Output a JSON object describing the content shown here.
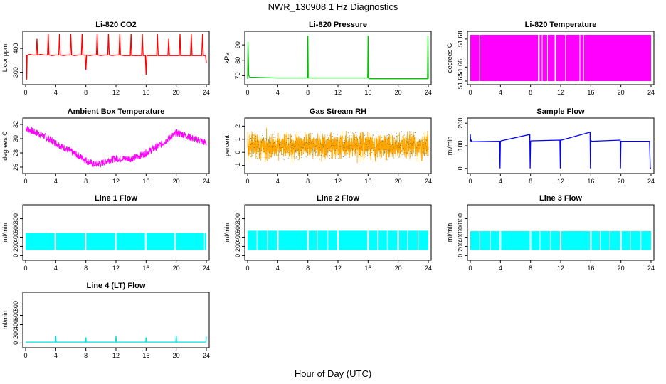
{
  "page": {
    "title": "NWR_130908  1 Hz Diagnostics",
    "xlabel": "Hour of Day (UTC)"
  },
  "chart_data": [
    {
      "type": "line",
      "title": "Li-820 CO2",
      "ylabel": "Licor ppm",
      "color": "#ff0000",
      "xlim": [
        0,
        24
      ],
      "x_ticks": [
        0,
        4,
        8,
        12,
        16,
        20,
        24
      ],
      "ylim": [
        260,
        460
      ],
      "y_ticks": [
        300,
        400
      ],
      "series": [
        {
          "x": [
            0,
            0.1,
            0.15,
            0.2,
            0.5,
            1.0,
            1.4,
            1.5,
            1.6,
            2.0,
            2.5,
            2.9,
            3.0,
            3.1,
            3.5,
            4.0,
            4.4,
            4.5,
            4.6,
            5.0,
            5.5,
            5.9,
            6.0,
            6.1,
            6.5,
            7.0,
            7.4,
            7.5,
            7.6,
            7.9,
            8.0,
            8.1,
            8.5,
            9.0,
            9.4,
            9.5,
            9.6,
            10.0,
            10.5,
            10.9,
            11.0,
            11.1,
            11.5,
            12.0,
            12.4,
            12.5,
            12.6,
            13.0,
            13.5,
            13.9,
            14.0,
            14.1,
            14.5,
            15.0,
            15.4,
            15.5,
            15.6,
            15.9,
            16.0,
            16.1,
            16.5,
            17.0,
            17.4,
            17.5,
            17.6,
            18.0,
            18.5,
            18.9,
            19.0,
            19.1,
            19.5,
            20.0,
            20.4,
            20.5,
            20.6,
            21.0,
            21.5,
            21.9,
            22.0,
            22.1,
            22.5,
            23.0,
            23.4,
            23.5,
            23.6,
            23.9,
            24.0
          ],
          "y": [
            370,
            370,
            270,
            370,
            375,
            372,
            372,
            440,
            372,
            375,
            372,
            372,
            460,
            372,
            370,
            372,
            372,
            460,
            372,
            370,
            372,
            372,
            460,
            372,
            370,
            372,
            372,
            460,
            372,
            372,
            310,
            372,
            370,
            372,
            372,
            460,
            372,
            370,
            372,
            372,
            460,
            372,
            370,
            372,
            372,
            460,
            372,
            370,
            370,
            370,
            460,
            370,
            370,
            370,
            370,
            460,
            370,
            370,
            290,
            370,
            370,
            370,
            370,
            460,
            370,
            370,
            370,
            370,
            440,
            370,
            370,
            370,
            370,
            460,
            370,
            370,
            370,
            370,
            460,
            370,
            370,
            370,
            370,
            460,
            370,
            370,
            340
          ]
        }
      ]
    },
    {
      "type": "line",
      "title": "Li-820 Pressure",
      "ylabel": "kPa",
      "color": "#00c000",
      "xlim": [
        0,
        24
      ],
      "x_ticks": [
        0,
        4,
        8,
        12,
        16,
        20,
        24
      ],
      "ylim": [
        66,
        97
      ],
      "y_ticks": [
        70,
        80,
        90
      ],
      "series": [
        {
          "x": [
            0,
            0.05,
            0.1,
            0.15,
            0.3,
            4.0,
            7.95,
            8.0,
            8.05,
            8.2,
            12.0,
            15.95,
            16.0,
            16.05,
            16.2,
            20.0,
            23.9,
            23.95,
            24.0
          ],
          "y": [
            68,
            92,
            80,
            70,
            69,
            68.5,
            68.5,
            96,
            68.5,
            68.5,
            68.5,
            68.5,
            96,
            68.5,
            68,
            68,
            68,
            96,
            68
          ]
        }
      ]
    },
    {
      "type": "area",
      "title": "Li-820 Temperature",
      "ylabel": "degrees C",
      "color": "#ff00ff",
      "xlim": [
        0,
        24
      ],
      "x_ticks": [
        0,
        4,
        8,
        12,
        16,
        20,
        24
      ],
      "ylim": [
        51.6495,
        51.6835
      ],
      "y_ticks": [
        51.65,
        51.66,
        51.68
      ],
      "y_tick_labels": [
        "51.65",
        "51.66",
        "51.68"
      ],
      "band_low": 51.65,
      "band_high": 51.683,
      "gaps": [
        [
          1.2,
          1.3
        ],
        [
          9.0,
          9.2
        ],
        [
          9.5,
          9.6
        ],
        [
          10.2,
          10.3
        ],
        [
          11.2,
          11.4
        ],
        [
          12.6,
          12.7
        ],
        [
          14.5,
          14.6
        ],
        [
          15.0,
          15.1
        ]
      ]
    },
    {
      "type": "line",
      "title": "Ambient Box Temperature",
      "ylabel": "degrees C",
      "color": "#ff00ff",
      "xlim": [
        0,
        24
      ],
      "x_ticks": [
        0,
        4,
        8,
        12,
        16,
        20,
        24
      ],
      "ylim": [
        25.5,
        32.5
      ],
      "y_ticks": [
        26,
        28,
        30,
        32
      ],
      "series": [
        {
          "x": [
            0,
            1,
            2,
            3,
            4,
            5,
            6,
            7,
            8,
            9,
            10,
            11,
            12,
            13,
            14,
            15,
            16,
            17,
            18,
            19,
            20,
            21,
            22,
            23,
            24
          ],
          "y": [
            31.5,
            31.0,
            30.6,
            30.0,
            29.4,
            28.8,
            28.2,
            27.6,
            27.0,
            26.4,
            26.5,
            27.0,
            27.2,
            27.2,
            27.2,
            27.5,
            28.0,
            28.6,
            29.2,
            30.0,
            30.8,
            30.6,
            30.1,
            29.8,
            29.4
          ]
        }
      ],
      "noise": 0.5
    },
    {
      "type": "scatter",
      "title": "Gas Stream RH",
      "ylabel": "percent",
      "color": "#ffa500",
      "point_color": "#806000",
      "xlim": [
        0,
        24
      ],
      "x_ticks": [
        0,
        4,
        8,
        12,
        16,
        20,
        24
      ],
      "ylim": [
        -1.4,
        2.4
      ],
      "y_ticks": [
        -1,
        0,
        1,
        2
      ],
      "center": 0.5,
      "spread": 0.9
    },
    {
      "type": "line",
      "title": "Sample Flow",
      "ylabel": "ml/min",
      "color": "#0000ff",
      "xlim": [
        0,
        24
      ],
      "x_ticks": [
        0,
        4,
        8,
        12,
        16,
        20,
        24
      ],
      "ylim": [
        -10,
        210
      ],
      "y_ticks": [
        0,
        100,
        200
      ],
      "series": [
        {
          "x": [
            0,
            0.05,
            0.1,
            0.2,
            3.9,
            3.95,
            4.0,
            4.1,
            7.9,
            7.95,
            8.0,
            8.1,
            11.9,
            11.95,
            12.0,
            12.1,
            15.9,
            15.95,
            16.0,
            16.1,
            19.9,
            19.95,
            20.0,
            20.1,
            23.8,
            23.9,
            24.0
          ],
          "y": [
            150,
            120,
            125,
            118,
            120,
            0,
            120,
            122,
            150,
            0,
            120,
            122,
            125,
            0,
            125,
            125,
            160,
            0,
            125,
            120,
            125,
            0,
            120,
            120,
            120,
            0,
            0
          ]
        }
      ]
    },
    {
      "type": "area",
      "title": "Line 1 Flow",
      "ylabel": "ml/min",
      "color": "#00ffff",
      "xlim": [
        0,
        24
      ],
      "x_ticks": [
        0,
        4,
        8,
        12,
        16,
        20,
        24
      ],
      "ylim": [
        -40,
        1040
      ],
      "y_ticks": [
        0,
        200,
        400,
        600,
        800
      ],
      "band_low": 120,
      "band_high": 490,
      "gaps": [
        [
          3.85,
          4.05
        ],
        [
          7.85,
          8.05
        ],
        [
          11.85,
          12.05
        ],
        [
          15.85,
          16.05
        ],
        [
          19.75,
          19.95
        ],
        [
          23.7,
          23.8
        ]
      ]
    },
    {
      "type": "area",
      "title": "Line 2 Flow",
      "ylabel": "ml/min",
      "color": "#00ffff",
      "xlim": [
        0,
        24
      ],
      "x_ticks": [
        0,
        4,
        8,
        12,
        16,
        20,
        24
      ],
      "ylim": [
        -40,
        1040
      ],
      "y_ticks": [
        0,
        200,
        400,
        600,
        800
      ],
      "band_low": 120,
      "band_high": 540,
      "gaps": [
        [
          1.2,
          1.3
        ],
        [
          2.6,
          2.7
        ],
        [
          3.9,
          4.1
        ],
        [
          7.9,
          8.1
        ],
        [
          9.2,
          9.3
        ],
        [
          10.6,
          10.7
        ],
        [
          11.9,
          12.1
        ],
        [
          15.9,
          16.1
        ],
        [
          17.2,
          17.3
        ],
        [
          18.5,
          18.6
        ],
        [
          19.9,
          20.1
        ],
        [
          21.2,
          21.3
        ],
        [
          22.6,
          22.7
        ]
      ]
    },
    {
      "type": "area",
      "title": "Line 3 Flow",
      "ylabel": "ml/min",
      "color": "#00ffff",
      "xlim": [
        0,
        24
      ],
      "x_ticks": [
        0,
        4,
        8,
        12,
        16,
        20,
        24
      ],
      "ylim": [
        -40,
        1040
      ],
      "y_ticks": [
        0,
        200,
        400,
        600,
        800
      ],
      "band_low": 120,
      "band_high": 530,
      "gaps": [
        [
          1.2,
          1.3
        ],
        [
          2.6,
          2.7
        ],
        [
          3.9,
          4.1
        ],
        [
          7.9,
          8.1
        ],
        [
          9.2,
          9.3
        ],
        [
          10.6,
          10.7
        ],
        [
          11.9,
          12.1
        ],
        [
          15.9,
          16.1
        ],
        [
          17.2,
          17.3
        ],
        [
          18.5,
          18.6
        ],
        [
          19.9,
          20.1
        ],
        [
          21.2,
          21.3
        ],
        [
          22.6,
          22.7
        ]
      ]
    },
    {
      "type": "line",
      "title": "Line 4 (LT) Flow",
      "ylabel": "ml/min",
      "color": "#00e0e0",
      "xlim": [
        0,
        24
      ],
      "x_ticks": [
        0,
        4,
        8,
        12,
        16,
        20,
        24
      ],
      "ylim": [
        -40,
        1040
      ],
      "y_ticks": [
        0,
        200,
        400,
        600,
        800
      ],
      "series": [
        {
          "x": [
            0,
            3.95,
            4.0,
            4.05,
            7.95,
            8.0,
            8.05,
            11.95,
            12.0,
            12.05,
            15.95,
            16.0,
            16.05,
            19.95,
            20.0,
            20.05,
            23.95,
            24.0
          ],
          "y": [
            20,
            20,
            160,
            20,
            20,
            120,
            20,
            20,
            160,
            20,
            20,
            120,
            20,
            20,
            160,
            20,
            20,
            140
          ]
        }
      ]
    }
  ]
}
